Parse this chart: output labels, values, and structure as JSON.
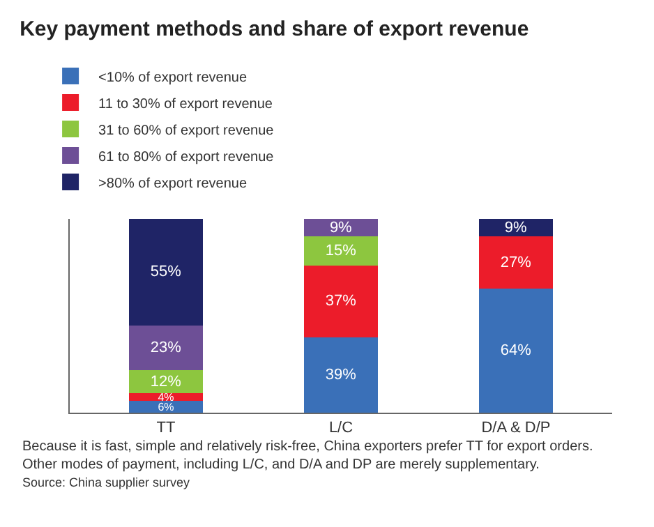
{
  "chart_data": {
    "type": "bar",
    "stacked": true,
    "title": "Key payment methods and share of export revenue",
    "categories": [
      "TT",
      "L/C",
      "D/A & D/P"
    ],
    "series": [
      {
        "name": "<10% of export revenue",
        "color": "#3a70b8",
        "values": [
          6,
          39,
          64
        ],
        "value_labels": [
          "6%",
          "39%",
          "64%"
        ]
      },
      {
        "name": "11 to 30% of export revenue",
        "color": "#ec1c2a",
        "values": [
          4,
          37,
          27
        ],
        "value_labels": [
          "4%",
          "37%",
          "27%"
        ]
      },
      {
        "name": "31 to 60% of export revenue",
        "color": "#8dc63f",
        "values": [
          12,
          15,
          null
        ],
        "value_labels": [
          "12%",
          "15%",
          null
        ]
      },
      {
        "name": "61 to 80% of export revenue",
        "color": "#6d4f96",
        "values": [
          23,
          9,
          null
        ],
        "value_labels": [
          "23%",
          "9%",
          null
        ]
      },
      {
        "name": ">80% of export revenue",
        "color": "#1f2466",
        "values": [
          55,
          null,
          9
        ],
        "value_labels": [
          "55%",
          null,
          "9%"
        ]
      }
    ],
    "ylim": [
      0,
      100
    ],
    "tick_labels": "x",
    "legend": "top",
    "annotations": [
      "Because it is fast, simple and relatively risk-free, China exporters prefer TT for export orders.\nOther modes of payment, including L/C, and D/A and DP are merely supplementary.",
      "Source: China supplier survey"
    ]
  }
}
